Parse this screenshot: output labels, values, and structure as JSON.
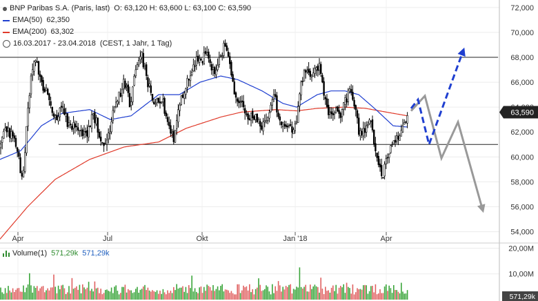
{
  "header": {
    "instrument": "BNP Paribas S.A. (Paris, last)",
    "ohlc": "O: 63,120  H: 63,600  L: 63,100  C: 63,590",
    "ema50_label": "EMA(50)",
    "ema50_value": "62,350",
    "ema200_label": "EMA(200)",
    "ema200_value": "63,302",
    "range": "16.03.2017 - 23.04.2018",
    "interval": "(CEST, 1 Jahr, 1 Tag)"
  },
  "volume_legend": {
    "label": "Volume(1)",
    "value_up": "571,29k",
    "value_total": "571,29k"
  },
  "colors": {
    "ema50": "#1f3fd0",
    "ema200": "#e03a2a",
    "candles": "#000000",
    "projection_blue": "#1f3fd0",
    "projection_gray": "#999999",
    "vol_up": "#3aa53a",
    "vol_down": "#e06060"
  },
  "chart_data": {
    "type": "candlestick",
    "x_ticks": [
      "Apr",
      "Jul",
      "Okt",
      "Jan '18",
      "Apr"
    ],
    "y_ticks": [
      "54,000",
      "56,000",
      "58,000",
      "60,000",
      "62,000",
      "64,000",
      "66,000",
      "68,000",
      "70,000",
      "72,000"
    ],
    "ylim": [
      53.2,
      72.6
    ],
    "last_price": "63,590",
    "last_price_value": 63.59,
    "horizontal_lines": [
      68.0,
      61.0
    ],
    "price_keypoints": [
      [
        0,
        60.8
      ],
      [
        10,
        62.3
      ],
      [
        20,
        61.5
      ],
      [
        28,
        59.5
      ],
      [
        33,
        57.8
      ],
      [
        40,
        63.5
      ],
      [
        45,
        66.5
      ],
      [
        50,
        68.0
      ],
      [
        60,
        66.0
      ],
      [
        70,
        65.0
      ],
      [
        80,
        63.2
      ],
      [
        90,
        63.8
      ],
      [
        100,
        62.5
      ],
      [
        110,
        62.8
      ],
      [
        118,
        62.2
      ],
      [
        125,
        61.6
      ],
      [
        135,
        63.5
      ],
      [
        145,
        61.8
      ],
      [
        150,
        61.2
      ],
      [
        158,
        61.9
      ],
      [
        165,
        64.0
      ],
      [
        172,
        64.7
      ],
      [
        180,
        66.3
      ],
      [
        188,
        64.2
      ],
      [
        195,
        66.3
      ],
      [
        202,
        68.3
      ],
      [
        207,
        67.9
      ],
      [
        212,
        66.4
      ],
      [
        220,
        64.8
      ],
      [
        228,
        64.2
      ],
      [
        236,
        64.5
      ],
      [
        245,
        62.4
      ],
      [
        252,
        61.6
      ],
      [
        258,
        63.3
      ],
      [
        266,
        65.3
      ],
      [
        274,
        66.6
      ],
      [
        280,
        67.0
      ],
      [
        286,
        68.0
      ],
      [
        292,
        67.8
      ],
      [
        298,
        68.3
      ],
      [
        305,
        67.4
      ],
      [
        312,
        66.6
      ],
      [
        318,
        67.9
      ],
      [
        325,
        68.8
      ],
      [
        330,
        68.0
      ],
      [
        340,
        65.3
      ],
      [
        350,
        64.3
      ],
      [
        360,
        62.9
      ],
      [
        368,
        63.3
      ],
      [
        375,
        62.6
      ],
      [
        385,
        62.7
      ],
      [
        392,
        64.3
      ],
      [
        398,
        65.3
      ],
      [
        404,
        63.0
      ],
      [
        410,
        62.9
      ],
      [
        418,
        62.4
      ],
      [
        425,
        61.8
      ],
      [
        430,
        62.8
      ],
      [
        436,
        65.6
      ],
      [
        442,
        67.0
      ],
      [
        448,
        66.3
      ],
      [
        456,
        67.2
      ],
      [
        462,
        67.4
      ],
      [
        470,
        65.0
      ],
      [
        476,
        63.8
      ],
      [
        482,
        62.8
      ],
      [
        488,
        64.0
      ],
      [
        494,
        63.3
      ],
      [
        500,
        64.6
      ],
      [
        508,
        65.3
      ],
      [
        515,
        64.1
      ],
      [
        520,
        62.2
      ],
      [
        525,
        61.7
      ],
      [
        532,
        62.4
      ],
      [
        538,
        62.7
      ],
      [
        545,
        60.3
      ],
      [
        550,
        59.1
      ],
      [
        556,
        58.6
      ],
      [
        561,
        60.0
      ],
      [
        566,
        60.6
      ],
      [
        572,
        61.1
      ],
      [
        580,
        61.8
      ],
      [
        585,
        62.4
      ],
      [
        591,
        63.6
      ]
    ],
    "ema50_keypoints": [
      [
        0,
        59.8
      ],
      [
        30,
        60.5
      ],
      [
        60,
        62.5
      ],
      [
        90,
        63.5
      ],
      [
        130,
        63.8
      ],
      [
        160,
        63.0
      ],
      [
        190,
        63.3
      ],
      [
        230,
        65.0
      ],
      [
        260,
        65.0
      ],
      [
        290,
        66.0
      ],
      [
        320,
        66.5
      ],
      [
        345,
        66.2
      ],
      [
        380,
        65.3
      ],
      [
        410,
        64.3
      ],
      [
        430,
        64.0
      ],
      [
        460,
        65.0
      ],
      [
        480,
        65.3
      ],
      [
        500,
        65.3
      ],
      [
        520,
        65.0
      ],
      [
        545,
        63.8
      ],
      [
        570,
        62.5
      ],
      [
        591,
        62.4
      ]
    ],
    "ema200_keypoints": [
      [
        0,
        53.4
      ],
      [
        40,
        56.0
      ],
      [
        80,
        58.2
      ],
      [
        130,
        59.8
      ],
      [
        180,
        60.8
      ],
      [
        230,
        61.2
      ],
      [
        270,
        62.3
      ],
      [
        320,
        63.2
      ],
      [
        350,
        63.6
      ],
      [
        400,
        63.8
      ],
      [
        430,
        63.7
      ],
      [
        460,
        63.9
      ],
      [
        500,
        64.0
      ],
      [
        530,
        63.9
      ],
      [
        560,
        63.6
      ],
      [
        591,
        63.3
      ]
    ],
    "projection_blue": [
      [
        596,
        63.9
      ],
      [
        606,
        64.6
      ],
      [
        622,
        61.0
      ],
      [
        672,
        68.6
      ]
    ],
    "projection_gray": [
      [
        596,
        63.7
      ],
      [
        616,
        64.9
      ],
      [
        640,
        59.9
      ],
      [
        664,
        62.8
      ],
      [
        700,
        55.7
      ]
    ],
    "volume_y_ticks": [
      "10,00M",
      "20,00M"
    ],
    "volume_last": "571,29k",
    "volume_ylim": [
      0,
      22
    ]
  }
}
